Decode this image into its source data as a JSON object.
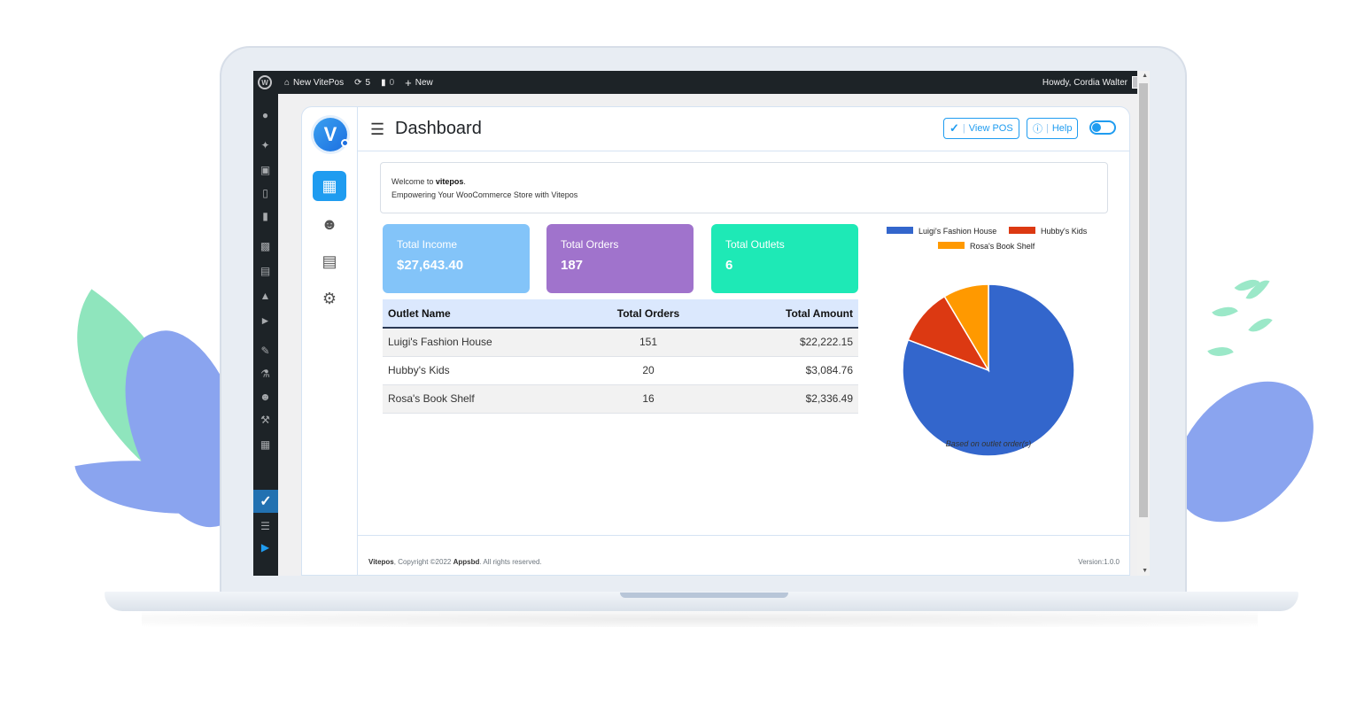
{
  "admin_bar": {
    "site_name": "New VitePos",
    "updates_count": "5",
    "comments_count": "0",
    "new_label": "New",
    "howdy": "Howdy, Cordia Walter"
  },
  "header": {
    "title": "Dashboard",
    "view_pos_label": "View POS",
    "help_label": "Help"
  },
  "welcome": {
    "prefix": "Welcome to",
    "brand": "vitepos",
    "suffix": ".",
    "tagline": "Empowering Your WooCommerce Store with Vitepos"
  },
  "stats": {
    "income_label": "Total Income",
    "income_value": "$27,643.40",
    "orders_label": "Total Orders",
    "orders_value": "187",
    "outlets_label": "Total Outlets",
    "outlets_value": "6"
  },
  "table": {
    "headers": [
      "Outlet Name",
      "Total Orders",
      "Total Amount"
    ],
    "rows": [
      {
        "name": "Luigi's Fashion House",
        "orders": "151",
        "amount": "$22,222.15"
      },
      {
        "name": "Hubby's Kids",
        "orders": "20",
        "amount": "$3,084.76"
      },
      {
        "name": "Rosa's Book Shelf",
        "orders": "16",
        "amount": "$2,336.49"
      }
    ]
  },
  "chart_data": {
    "type": "pie",
    "labels": [
      "Luigi's Fashion House",
      "Hubby's Kids",
      "Rosa's Book Shelf"
    ],
    "values": [
      151,
      20,
      16
    ],
    "colors": [
      "#3366cc",
      "#dc3912",
      "#ff9900"
    ],
    "legend_position": "top",
    "caption": "Based on outlet order(s)"
  },
  "footer": {
    "brand": "Vitepos",
    "copyright_mid": ", Copyright ©2022 ",
    "company": "Appsbd",
    "copyright_end": ". All rights reserved.",
    "version": "Version:1.0.0"
  },
  "colors": {
    "accent": "#1f9cf0",
    "income_card": "#83c4f9",
    "orders_card": "#a073cc",
    "outlets_card": "#1ee9b6",
    "admin_bar": "#1d2327"
  }
}
